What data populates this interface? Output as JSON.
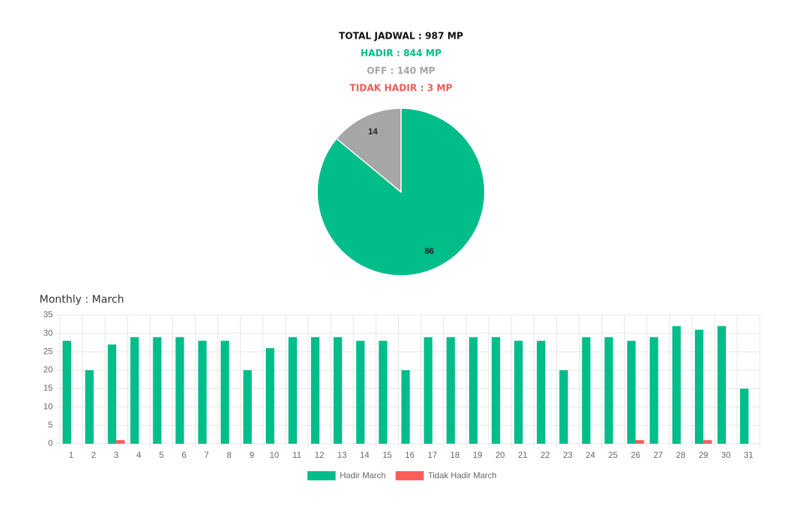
{
  "summary": [
    {
      "text": "TOTAL JADWAL : 987 MP",
      "color": "#111111"
    },
    {
      "text": "HADIR : 844 MP",
      "color": "#00bd8a"
    },
    {
      "text": "OFF : 140 MP",
      "color": "#a6a6a6"
    },
    {
      "text": "TIDAK HADIR : 3 MP",
      "color": "#f25a5a"
    }
  ],
  "chart_data": [
    {
      "type": "pie",
      "values": [
        86,
        14
      ],
      "colors": [
        "#00bd8a",
        "#a6a6a6"
      ]
    },
    {
      "type": "bar",
      "title": "Monthly : March",
      "categories": [
        "1",
        "2",
        "3",
        "4",
        "5",
        "6",
        "7",
        "8",
        "9",
        "10",
        "11",
        "12",
        "13",
        "14",
        "15",
        "16",
        "17",
        "18",
        "19",
        "20",
        "21",
        "22",
        "23",
        "24",
        "25",
        "26",
        "27",
        "28",
        "29",
        "30",
        "31"
      ],
      "series": [
        {
          "name": "Hadir March",
          "color": "#00bd8a",
          "values": [
            28,
            20,
            27,
            29,
            29,
            29,
            28,
            28,
            20,
            26,
            29,
            29,
            29,
            28,
            28,
            20,
            29,
            29,
            29,
            29,
            28,
            28,
            20,
            29,
            29,
            28,
            29,
            32,
            31,
            32,
            15
          ]
        },
        {
          "name": "Tidak Hadir March",
          "color": "#ff5c5c",
          "values": [
            0,
            0,
            1,
            0,
            0,
            0,
            0,
            0,
            0,
            0,
            0,
            0,
            0,
            0,
            0,
            0,
            0,
            0,
            0,
            0,
            0,
            0,
            0,
            0,
            0,
            1,
            0,
            0,
            1,
            0,
            0
          ]
        }
      ],
      "ylim": [
        0,
        35
      ],
      "yticks": [
        0,
        5,
        10,
        15,
        20,
        25,
        30,
        35
      ],
      "grid": true,
      "legend": "bottom"
    }
  ]
}
